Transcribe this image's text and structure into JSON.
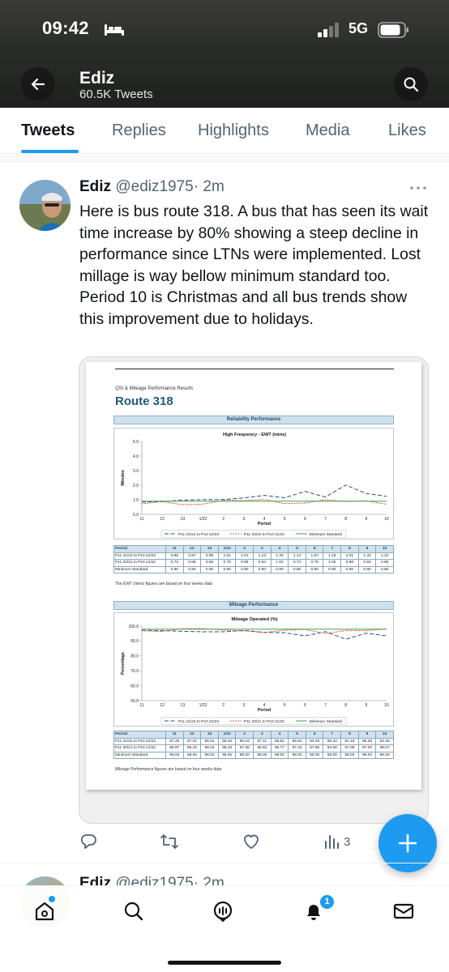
{
  "status_bar": {
    "time": "09:42",
    "network": "5G"
  },
  "profile": {
    "name": "Ediz",
    "tweet_count": "60.5K Tweets"
  },
  "tabs": [
    {
      "label": "Tweets",
      "active": true
    },
    {
      "label": "Replies",
      "active": false
    },
    {
      "label": "Highlights",
      "active": false
    },
    {
      "label": "Media",
      "active": false
    },
    {
      "label": "Likes",
      "active": false
    }
  ],
  "tweet": {
    "name": "Ediz",
    "handle": "@ediz1975",
    "time": "· 2m",
    "text": "Here is bus route 318. A bus that has seen its wait time increase by 80% showing a steep decline in performance since LTNs were implemented. Lost millage is way bellow minimum standard too. Period 10 is Christmas and all bus trends show this improvement due to holidays.",
    "actions": {
      "views": "3"
    }
  },
  "document": {
    "subtitle": "QSI & Mileage Performance Results",
    "title": "Route 318",
    "reliability": {
      "section_label": "Reliability Performance",
      "chart_title": "High Frequency - EWT (mins)",
      "ylabel": "Minutes",
      "xlabel": "Period",
      "note": "The EWT (mins) figures are based on four weeks data"
    },
    "mileage": {
      "section_label": "Mileage Performance",
      "chart_title": "Mileage Operated (%)",
      "ylabel": "Percentage",
      "xlabel": "Period",
      "note": "Mileage Performance figures are based on four weeks data"
    },
    "table_header": "Period",
    "row_labels": [
      "P11 21/22 to P10 22/23",
      "P11 20/21 to P10 21/22",
      "Minimum Standard"
    ]
  },
  "chart_data": [
    {
      "type": "line",
      "title": "High Frequency - EWT (mins)",
      "xlabel": "Period",
      "ylabel": "Minutes",
      "categories": [
        "11",
        "12",
        "13",
        "1/22",
        "2",
        "3",
        "4",
        "5",
        "6",
        "7",
        "8",
        "9",
        "10"
      ],
      "ylim": [
        0,
        5
      ],
      "yticks": [
        "0.0",
        "1.0",
        "2.0",
        "3.0",
        "4.0",
        "5.0"
      ],
      "series": [
        {
          "name": "P11 21/22 to P10 22/23",
          "color": "#2e4e7a",
          "dash": "long",
          "values": [
            0.85,
            0.87,
            0.98,
            1.01,
            1.01,
            1.13,
            1.3,
            1.14,
            1.57,
            1.19,
            2.01,
            1.43,
            1.24
          ]
        },
        {
          "name": "P11 20/21 to P10 21/22",
          "color": "#e03b2e",
          "dash": "short",
          "values": [
            0.73,
            0.88,
            0.66,
            0.7,
            0.96,
            0.94,
            1.02,
            0.74,
            0.78,
            1.0,
            0.88,
            0.93,
            0.69
          ]
        },
        {
          "name": "Minimum Standard",
          "color": "#3aa54a",
          "dash": "solid",
          "values": [
            0.9,
            0.9,
            0.9,
            0.9,
            0.9,
            0.9,
            0.9,
            0.9,
            0.9,
            0.9,
            0.9,
            0.9,
            0.9
          ]
        }
      ]
    },
    {
      "type": "line",
      "title": "Mileage Operated (%)",
      "xlabel": "Period",
      "ylabel": "Percentage",
      "categories": [
        "11",
        "12",
        "13",
        "1/22",
        "2",
        "3",
        "4",
        "5",
        "6",
        "7",
        "8",
        "9",
        "10"
      ],
      "ylim": [
        50,
        100
      ],
      "yticks": [
        "50.0",
        "60.0",
        "70.0",
        "80.0",
        "90.0",
        "100.0"
      ],
      "series": [
        {
          "name": "P11 21/22 to P10 22/23",
          "color": "#2e4e7a",
          "dash": "long",
          "values": [
            97.2,
            97.02,
            96.52,
            96.2,
            96.18,
            97.11,
            95.82,
            95.52,
            93.49,
            96.33,
            91.18,
            95.29,
            93.48
          ]
        },
        {
          "name": "P11 20/21 to P10 21/22",
          "color": "#e03b2e",
          "dash": "short",
          "values": [
            96.97,
            96.43,
            98.34,
            98.43,
            97.36,
            96.82,
            95.77,
            97.24,
            97.85,
            94.98,
            97.08,
            97.0,
            98.07
          ]
        },
        {
          "name": "Minimum Standard",
          "color": "#3aa54a",
          "dash": "solid",
          "values": [
            98.0,
            98.0,
            98.0,
            98.0,
            98.0,
            98.0,
            98.0,
            98.0,
            98.0,
            98.0,
            98.0,
            98.0,
            98.0
          ]
        }
      ]
    }
  ],
  "reliability_table": [
    [
      "0.85",
      "0.87",
      "0.98",
      "1.01",
      "1.01",
      "1.13",
      "1.30",
      "1.14",
      "1.57",
      "1.19",
      "2.01",
      "1.43",
      "1.24"
    ],
    [
      "0.73",
      "0.88",
      "0.66",
      "0.70",
      "0.96",
      "0.94",
      "1.02",
      "0.74",
      "0.78",
      "1.00",
      "0.88",
      "0.93",
      "0.69"
    ],
    [
      "0.90",
      "0.90",
      "0.90",
      "0.90",
      "0.90",
      "0.90",
      "0.90",
      "0.90",
      "0.90",
      "0.90",
      "0.90",
      "0.90",
      "0.90"
    ]
  ],
  "mileage_table": [
    [
      "97.20",
      "97.02",
      "96.52",
      "96.20",
      "96.18",
      "97.11",
      "95.82",
      "95.52",
      "93.49",
      "96.33",
      "91.18",
      "95.29",
      "93.48"
    ],
    [
      "96.97",
      "96.43",
      "98.34",
      "98.43",
      "97.36",
      "96.82",
      "95.77",
      "97.24",
      "97.85",
      "94.98",
      "97.08",
      "97.00",
      "98.07"
    ],
    [
      "98.00",
      "98.00",
      "98.00",
      "98.00",
      "98.00",
      "98.00",
      "98.00",
      "98.00",
      "98.00",
      "98.00",
      "98.00",
      "98.00",
      "98.00"
    ]
  ],
  "next_tweet": {
    "name": "Ediz",
    "handle": "@ediz1975",
    "time": "· 2m"
  },
  "bottom_nav": {
    "notifications_badge": "1"
  },
  "icons": [
    "bed-icon",
    "signal-icon",
    "battery-icon",
    "back-arrow-icon",
    "search-icon",
    "more-icon",
    "reply-icon",
    "retweet-icon",
    "like-icon",
    "views-icon",
    "share-icon",
    "compose-plus-icon",
    "home-icon",
    "explore-icon",
    "spaces-icon",
    "bell-icon",
    "mail-icon"
  ]
}
